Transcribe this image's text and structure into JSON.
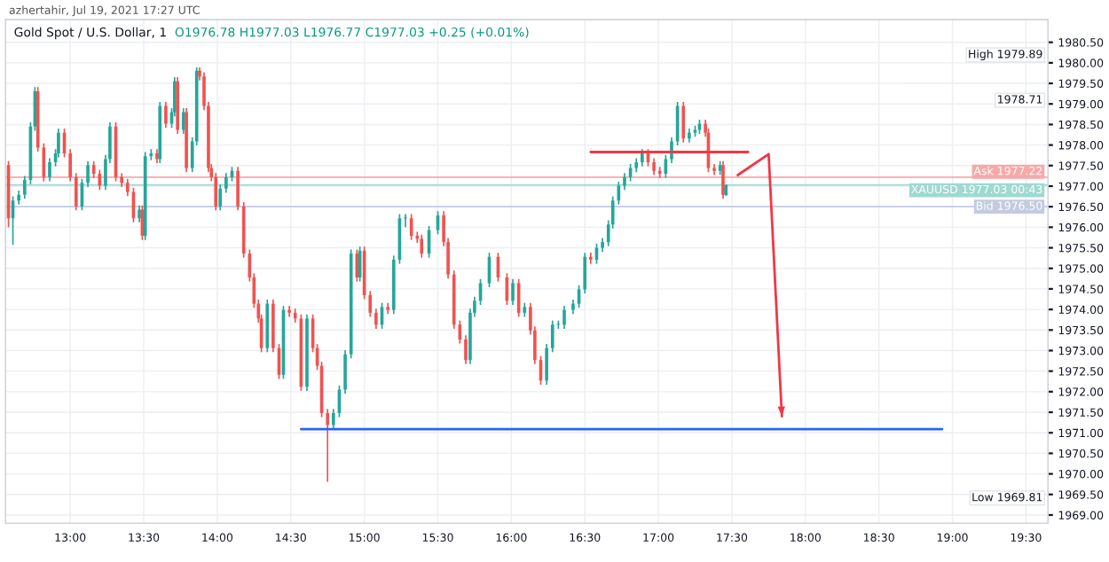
{
  "chart_data": {
    "type": "candlestick",
    "title": "Gold Spot / U.S. Dollar, 1",
    "subtitle": "O1976.78 H1977.03 L1976.77 C1977.03 +0.25 (+0.01%)",
    "annotations": [
      "azhertahir, Jul 19, 2021 17:27 UTC",
      "High 1979.89",
      "1978.71",
      "Low 1969.81"
    ],
    "x": [
      12.58,
      12.61,
      12.65,
      12.69,
      12.73,
      12.76,
      12.78,
      12.82,
      12.86,
      12.9,
      12.92,
      12.96,
      13.0,
      13.04,
      13.08,
      13.12,
      13.16,
      13.2,
      13.24,
      13.27,
      13.31,
      13.35,
      13.39,
      13.43,
      13.47,
      13.49,
      13.51,
      13.55,
      13.59,
      13.61,
      13.65,
      13.69,
      13.71,
      13.73,
      13.77,
      13.79,
      13.83,
      13.86,
      13.88,
      13.91,
      13.94,
      13.96,
      13.99,
      14.02,
      14.06,
      14.1,
      14.14,
      14.18,
      14.22,
      14.25,
      14.28,
      14.3,
      14.34,
      14.38,
      14.42,
      14.45,
      14.49,
      14.53,
      14.57,
      14.61,
      14.65,
      14.68,
      14.71,
      14.75,
      14.79,
      14.83,
      14.87,
      14.91,
      14.95,
      14.97,
      15.0,
      15.04,
      15.08,
      15.12,
      15.16,
      15.2,
      15.24,
      15.28,
      15.32,
      15.36,
      15.39,
      15.44,
      15.5,
      15.54,
      15.57,
      15.61,
      15.65,
      15.69,
      15.72,
      15.75,
      15.79,
      15.85,
      15.91,
      15.97,
      16.01,
      16.05,
      16.09,
      16.13,
      16.16,
      16.2,
      16.24,
      16.28,
      16.32,
      16.36,
      16.42,
      16.46,
      16.5,
      16.54,
      16.58,
      16.62,
      16.66,
      16.69,
      16.73,
      16.77,
      16.81,
      16.85,
      16.89,
      16.93,
      16.97,
      17.01,
      17.05,
      17.09,
      17.13,
      17.17,
      17.21,
      17.25,
      17.28,
      17.32,
      17.34,
      17.38,
      17.42,
      17.44,
      17.46
    ],
    "ohlc": [
      [
        1977.51,
        1977.61,
        1976.0,
        1976.22
      ],
      [
        1976.22,
        1976.75,
        1975.57,
        1976.65
      ],
      [
        1976.65,
        1976.89,
        1976.55,
        1976.79
      ],
      [
        1976.79,
        1977.25,
        1976.69,
        1977.15
      ],
      [
        1977.15,
        1978.55,
        1977.05,
        1978.45
      ],
      [
        1978.45,
        1979.41,
        1978.35,
        1979.31
      ],
      [
        1979.31,
        1979.41,
        1977.84,
        1977.94
      ],
      [
        1977.94,
        1978.04,
        1977.12,
        1977.22
      ],
      [
        1977.22,
        1977.68,
        1977.12,
        1977.58
      ],
      [
        1977.58,
        1977.9,
        1977.48,
        1977.8
      ],
      [
        1977.8,
        1978.4,
        1977.7,
        1978.3
      ],
      [
        1978.3,
        1978.4,
        1977.7,
        1977.8
      ],
      [
        1977.8,
        1977.9,
        1977.12,
        1977.22
      ],
      [
        1977.22,
        1977.32,
        1976.41,
        1976.51
      ],
      [
        1976.51,
        1977.18,
        1976.41,
        1977.08
      ],
      [
        1977.08,
        1977.61,
        1976.98,
        1977.51
      ],
      [
        1977.51,
        1977.61,
        1977.2,
        1977.3
      ],
      [
        1977.3,
        1977.4,
        1976.91,
        1977.01
      ],
      [
        1977.01,
        1977.76,
        1976.91,
        1977.66
      ],
      [
        1977.66,
        1978.55,
        1977.56,
        1978.45
      ],
      [
        1978.45,
        1978.55,
        1977.12,
        1977.22
      ],
      [
        1977.22,
        1977.32,
        1976.98,
        1977.08
      ],
      [
        1977.08,
        1977.18,
        1976.76,
        1976.86
      ],
      [
        1976.86,
        1976.96,
        1976.12,
        1976.22
      ],
      [
        1976.22,
        1976.53,
        1976.12,
        1976.43
      ],
      [
        1976.43,
        1976.53,
        1975.69,
        1975.79
      ],
      [
        1975.79,
        1977.83,
        1975.69,
        1977.73
      ],
      [
        1977.73,
        1977.9,
        1977.63,
        1977.8
      ],
      [
        1977.8,
        1977.9,
        1977.56,
        1977.66
      ],
      [
        1977.66,
        1979.05,
        1977.56,
        1978.95
      ],
      [
        1978.95,
        1979.05,
        1978.42,
        1978.52
      ],
      [
        1978.52,
        1978.9,
        1978.42,
        1978.8
      ],
      [
        1978.8,
        1979.65,
        1978.7,
        1979.55
      ],
      [
        1979.55,
        1979.65,
        1978.27,
        1978.37
      ],
      [
        1978.37,
        1978.9,
        1978.27,
        1978.8
      ],
      [
        1978.8,
        1978.9,
        1977.34,
        1977.44
      ],
      [
        1977.44,
        1978.19,
        1977.34,
        1978.09
      ],
      [
        1978.09,
        1979.89,
        1977.99,
        1979.81
      ],
      [
        1979.81,
        1979.89,
        1979.57,
        1979.67
      ],
      [
        1979.67,
        1979.77,
        1978.85,
        1978.95
      ],
      [
        1978.95,
        1979.05,
        1977.34,
        1977.44
      ],
      [
        1977.44,
        1977.54,
        1977.12,
        1977.22
      ],
      [
        1977.22,
        1977.32,
        1976.41,
        1976.51
      ],
      [
        1976.51,
        1977.04,
        1976.41,
        1976.94
      ],
      [
        1976.94,
        1977.32,
        1976.84,
        1977.22
      ],
      [
        1977.22,
        1977.47,
        1977.12,
        1977.37
      ],
      [
        1977.37,
        1977.47,
        1976.41,
        1976.51
      ],
      [
        1976.51,
        1976.61,
        1975.26,
        1975.36
      ],
      [
        1975.36,
        1975.46,
        1974.68,
        1974.78
      ],
      [
        1974.78,
        1974.88,
        1974.04,
        1974.14
      ],
      [
        1974.14,
        1974.24,
        1973.68,
        1973.78
      ],
      [
        1973.78,
        1973.88,
        1972.96,
        1973.06
      ],
      [
        1973.06,
        1974.24,
        1972.96,
        1974.14
      ],
      [
        1974.14,
        1974.24,
        1972.96,
        1973.06
      ],
      [
        1973.06,
        1973.16,
        1972.31,
        1972.41
      ],
      [
        1972.41,
        1974.09,
        1972.31,
        1973.99
      ],
      [
        1973.99,
        1974.09,
        1973.82,
        1973.92
      ],
      [
        1973.92,
        1974.02,
        1973.68,
        1973.78
      ],
      [
        1973.78,
        1973.88,
        1972.02,
        1972.12
      ],
      [
        1972.12,
        1973.88,
        1972.02,
        1973.78
      ],
      [
        1973.78,
        1973.88,
        1972.96,
        1973.06
      ],
      [
        1973.06,
        1973.16,
        1972.53,
        1972.63
      ],
      [
        1972.63,
        1972.73,
        1971.38,
        1971.48
      ],
      [
        1971.48,
        1971.58,
        1969.81,
        1971.19
      ],
      [
        1971.19,
        1971.58,
        1971.09,
        1971.48
      ],
      [
        1971.48,
        1972.15,
        1971.38,
        1972.05
      ],
      [
        1972.05,
        1973.01,
        1971.95,
        1972.91
      ],
      [
        1972.91,
        1975.46,
        1972.81,
        1975.36
      ],
      [
        1975.36,
        1975.46,
        1974.68,
        1974.78
      ],
      [
        1974.78,
        1975.53,
        1974.68,
        1975.43
      ],
      [
        1975.43,
        1975.53,
        1974.25,
        1974.35
      ],
      [
        1974.35,
        1974.45,
        1973.82,
        1973.92
      ],
      [
        1973.92,
        1974.02,
        1973.53,
        1973.63
      ],
      [
        1973.63,
        1974.16,
        1973.53,
        1974.06
      ],
      [
        1974.06,
        1974.16,
        1973.89,
        1973.99
      ],
      [
        1973.99,
        1975.31,
        1973.89,
        1975.21
      ],
      [
        1975.21,
        1976.32,
        1975.11,
        1976.22
      ],
      [
        1976.22,
        1976.32,
        1976.0,
        1976.22
      ],
      [
        1976.22,
        1976.32,
        1975.69,
        1975.79
      ],
      [
        1975.79,
        1975.89,
        1975.62,
        1975.72
      ],
      [
        1975.72,
        1975.82,
        1975.26,
        1975.36
      ],
      [
        1975.36,
        1976.03,
        1975.26,
        1975.93
      ],
      [
        1975.93,
        1976.39,
        1975.83,
        1976.29
      ],
      [
        1976.29,
        1976.39,
        1975.54,
        1975.64
      ],
      [
        1975.64,
        1975.74,
        1974.75,
        1974.85
      ],
      [
        1974.85,
        1974.95,
        1973.53,
        1973.63
      ],
      [
        1973.63,
        1973.73,
        1973.17,
        1973.27
      ],
      [
        1973.27,
        1973.37,
        1972.67,
        1972.77
      ],
      [
        1972.77,
        1974.02,
        1972.67,
        1973.92
      ],
      [
        1973.92,
        1974.31,
        1973.82,
        1974.21
      ],
      [
        1974.21,
        1974.74,
        1974.11,
        1974.64
      ],
      [
        1974.64,
        1975.38,
        1974.54,
        1975.28
      ],
      [
        1975.28,
        1975.38,
        1974.68,
        1974.78
      ],
      [
        1974.78,
        1974.88,
        1974.11,
        1974.21
      ],
      [
        1974.21,
        1974.74,
        1974.11,
        1974.64
      ],
      [
        1974.64,
        1974.74,
        1973.82,
        1973.92
      ],
      [
        1973.92,
        1974.16,
        1973.82,
        1974.06
      ],
      [
        1974.06,
        1974.16,
        1973.39,
        1973.49
      ],
      [
        1973.49,
        1973.59,
        1972.67,
        1972.77
      ],
      [
        1972.77,
        1972.87,
        1972.17,
        1972.27
      ],
      [
        1972.27,
        1973.16,
        1972.17,
        1973.06
      ],
      [
        1973.06,
        1973.73,
        1972.96,
        1973.63
      ],
      [
        1973.63,
        1973.73,
        1973.53,
        1973.63
      ],
      [
        1973.63,
        1974.09,
        1973.53,
        1973.99
      ],
      [
        1973.99,
        1974.24,
        1973.89,
        1974.14
      ],
      [
        1974.14,
        1974.59,
        1974.04,
        1974.49
      ],
      [
        1974.49,
        1975.38,
        1974.39,
        1975.28
      ],
      [
        1975.28,
        1975.38,
        1975.11,
        1975.21
      ],
      [
        1975.21,
        1975.6,
        1975.11,
        1975.5
      ],
      [
        1975.5,
        1975.74,
        1975.4,
        1975.64
      ],
      [
        1975.64,
        1976.17,
        1975.54,
        1976.07
      ],
      [
        1976.07,
        1976.75,
        1975.97,
        1976.65
      ],
      [
        1976.65,
        1977.11,
        1976.55,
        1977.01
      ],
      [
        1977.01,
        1977.32,
        1976.91,
        1977.22
      ],
      [
        1977.22,
        1977.54,
        1977.12,
        1977.44
      ],
      [
        1977.44,
        1977.68,
        1977.34,
        1977.58
      ],
      [
        1977.58,
        1977.9,
        1977.48,
        1977.8
      ],
      [
        1977.8,
        1977.9,
        1977.48,
        1977.58
      ],
      [
        1977.58,
        1977.68,
        1977.27,
        1977.37
      ],
      [
        1977.37,
        1977.47,
        1977.2,
        1977.3
      ],
      [
        1977.3,
        1977.76,
        1977.2,
        1977.66
      ],
      [
        1977.66,
        1978.19,
        1977.56,
        1978.09
      ],
      [
        1978.09,
        1979.05,
        1977.99,
        1978.95
      ],
      [
        1978.95,
        1979.05,
        1978.06,
        1978.16
      ],
      [
        1978.16,
        1978.4,
        1978.06,
        1978.3
      ],
      [
        1978.3,
        1978.47,
        1978.2,
        1978.37
      ],
      [
        1978.37,
        1978.62,
        1978.27,
        1978.52
      ],
      [
        1978.52,
        1978.62,
        1978.2,
        1978.3
      ],
      [
        1978.3,
        1978.4,
        1977.34,
        1977.44
      ],
      [
        1977.44,
        1977.54,
        1977.27,
        1977.37
      ],
      [
        1977.37,
        1977.61,
        1977.27,
        1977.51
      ],
      [
        1977.51,
        1977.61,
        1976.69,
        1976.79
      ],
      [
        1976.78,
        1977.03,
        1976.77,
        1977.03
      ]
    ],
    "series": [
      {
        "type": "line",
        "color": "#f23645",
        "x": [
          16.54,
          17.61
        ],
        "values": [
          1977.83,
          1977.83
        ]
      },
      {
        "type": "line",
        "color": "#2962ff",
        "x": [
          14.57,
          18.93
        ],
        "values": [
          1971.09,
          1971.09
        ]
      },
      {
        "type": "line",
        "color": "#f23645",
        "x": [
          17.54,
          17.75,
          17.84
        ],
        "values": [
          1977.27,
          1977.78,
          1971.4
        ]
      }
    ],
    "ref_lines": [
      {
        "axis": "y",
        "value": 1977.22,
        "label": "Ask 1977.22",
        "color": "#f7a9a8"
      },
      {
        "axis": "y",
        "value": 1977.03,
        "label": "XAUUSD 1977.03 00:43",
        "color": "#9fd9d2"
      },
      {
        "axis": "y",
        "value": 1976.5,
        "label": "Bid 1976.50",
        "color": "#c3cbe0"
      }
    ],
    "xlim": [
      12.56,
      19.65
    ],
    "ylim": [
      1968.8,
      1981.05
    ],
    "xticks": [
      {
        "value": 13,
        "label": "13:00"
      },
      {
        "value": 13.5,
        "label": "13:30"
      },
      {
        "value": 14,
        "label": "14:00"
      },
      {
        "value": 14.5,
        "label": "14:30"
      },
      {
        "value": 15,
        "label": "15:00"
      },
      {
        "value": 15.5,
        "label": "15:30"
      },
      {
        "value": 16,
        "label": "16:00"
      },
      {
        "value": 16.5,
        "label": "16:30"
      },
      {
        "value": 17,
        "label": "17:00"
      },
      {
        "value": 17.5,
        "label": "17:30"
      },
      {
        "value": 18,
        "label": "18:00"
      },
      {
        "value": 18.5,
        "label": "18:30"
      },
      {
        "value": 19,
        "label": "19:00"
      },
      {
        "value": 19.5,
        "label": "19:30"
      }
    ],
    "yticks": [
      {
        "value": 1969,
        "label": "1969.00"
      },
      {
        "value": 1969.5,
        "label": "1969.50"
      },
      {
        "value": 1970,
        "label": "1970.00"
      },
      {
        "value": 1970.5,
        "label": "1970.50"
      },
      {
        "value": 1971,
        "label": "1971.00"
      },
      {
        "value": 1971.5,
        "label": "1971.50"
      },
      {
        "value": 1972,
        "label": "1972.00"
      },
      {
        "value": 1972.5,
        "label": "1972.50"
      },
      {
        "value": 1973,
        "label": "1973.00"
      },
      {
        "value": 1973.5,
        "label": "1973.50"
      },
      {
        "value": 1974,
        "label": "1974.00"
      },
      {
        "value": 1974.5,
        "label": "1974.50"
      },
      {
        "value": 1975,
        "label": "1975.00"
      },
      {
        "value": 1975.5,
        "label": "1975.50"
      },
      {
        "value": 1976,
        "label": "1976.00"
      },
      {
        "value": 1976.5,
        "label": "1976.50"
      },
      {
        "value": 1977,
        "label": "1977.00"
      },
      {
        "value": 1977.5,
        "label": "1977.50"
      },
      {
        "value": 1978,
        "label": "1978.00"
      },
      {
        "value": 1978.5,
        "label": "1978.50"
      },
      {
        "value": 1979,
        "label": "1979.00"
      },
      {
        "value": 1979.5,
        "label": "1979.50"
      },
      {
        "value": 1980,
        "label": "1980.00"
      },
      {
        "value": 1980.5,
        "label": "1980.50"
      }
    ],
    "grid": true
  }
}
